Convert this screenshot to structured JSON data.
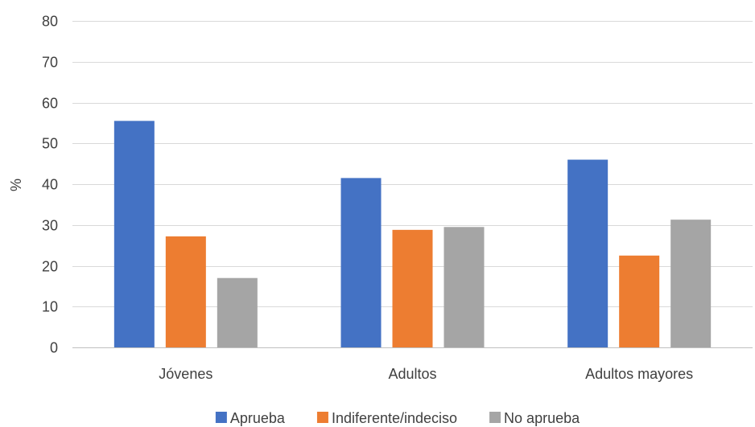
{
  "chart_data": {
    "type": "bar",
    "categories": [
      "Jóvenes",
      "Adultos",
      "Adultos mayores"
    ],
    "series": [
      {
        "name": "Aprueba",
        "values": [
          55.5,
          41.5,
          46
        ],
        "color": "#4472C4"
      },
      {
        "name": "Indiferente/indeciso",
        "values": [
          27.2,
          28.8,
          22.5
        ],
        "color": "#ED7D31"
      },
      {
        "name": "No aprueba",
        "values": [
          17,
          29.5,
          31.3
        ],
        "color": "#A5A5A5"
      }
    ],
    "title": "",
    "xlabel": "",
    "ylabel": "%",
    "ylim": [
      0,
      80
    ],
    "yticks": [
      0,
      10,
      20,
      30,
      40,
      50,
      60,
      70,
      80
    ],
    "grid": true,
    "legend_position": "bottom"
  }
}
